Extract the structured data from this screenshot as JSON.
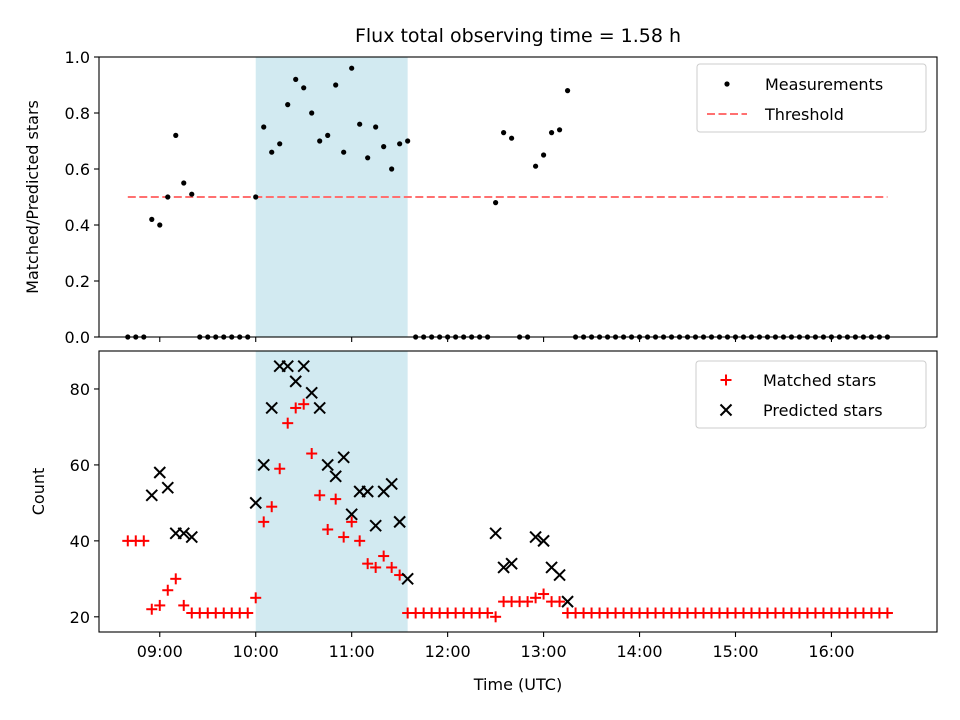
{
  "chart_data": [
    {
      "type": "scatter",
      "title": "Flux total observing time = 1.58 h",
      "xlabel": "",
      "ylabel": "Matched/Predicted stars",
      "ylim": [
        0,
        1.0
      ],
      "yticks": [
        "0.0",
        "0.2",
        "0.4",
        "0.6",
        "0.8",
        "1.0"
      ],
      "xlim": [
        "08:22",
        "17:06"
      ],
      "grid": false,
      "legend_position": "top-right",
      "highlight_span": {
        "start": "10:00",
        "end": "11:35",
        "color": "#add8e6"
      },
      "series": [
        {
          "name": "Measurements",
          "kind": "points",
          "color": "#000000",
          "x": [
            "08:40",
            "08:45",
            "08:50",
            "08:55",
            "09:00",
            "09:05",
            "09:10",
            "09:15",
            "09:20",
            "09:25",
            "09:30",
            "09:35",
            "09:40",
            "09:45",
            "09:50",
            "09:55",
            "10:00",
            "10:05",
            "10:10",
            "10:15",
            "10:20",
            "10:25",
            "10:30",
            "10:35",
            "10:40",
            "10:45",
            "10:50",
            "10:55",
            "11:00",
            "11:05",
            "11:10",
            "11:15",
            "11:20",
            "11:25",
            "11:30",
            "11:35",
            "11:40",
            "11:45",
            "11:50",
            "11:55",
            "12:00",
            "12:05",
            "12:10",
            "12:15",
            "12:20",
            "12:25",
            "12:30",
            "12:35",
            "12:40",
            "12:45",
            "12:50",
            "12:55",
            "13:00",
            "13:05",
            "13:10",
            "13:15",
            "13:20",
            "13:25",
            "13:30",
            "13:35",
            "13:40",
            "13:45",
            "13:50",
            "13:55",
            "14:00",
            "14:05",
            "14:10",
            "14:15",
            "14:20",
            "14:25",
            "14:30",
            "14:35",
            "14:40",
            "14:45",
            "14:50",
            "14:55",
            "15:00",
            "15:05",
            "15:10",
            "15:15",
            "15:20",
            "15:25",
            "15:30",
            "15:35",
            "15:40",
            "15:45",
            "15:50",
            "15:55",
            "16:00",
            "16:05",
            "16:10",
            "16:15",
            "16:20",
            "16:25",
            "16:30",
            "16:35"
          ],
          "y": [
            0,
            0,
            0,
            0.42,
            0.4,
            0.5,
            0.72,
            0.55,
            0.51,
            0,
            0,
            0,
            0,
            0,
            0,
            0,
            0.5,
            0.75,
            0.66,
            0.69,
            0.83,
            0.92,
            0.89,
            0.8,
            0.7,
            0.72,
            0.9,
            0.66,
            0.96,
            0.76,
            0.64,
            0.75,
            0.68,
            0.6,
            0.69,
            0.7,
            0,
            0,
            0,
            0,
            0,
            0,
            0,
            0,
            0,
            0,
            0.48,
            0.73,
            0.71,
            0,
            0,
            0.61,
            0.65,
            0.73,
            0.74,
            0.88,
            0,
            0,
            0,
            0,
            0,
            0,
            0,
            0,
            0,
            0,
            0,
            0,
            0,
            0,
            0,
            0,
            0,
            0,
            0,
            0,
            0,
            0,
            0,
            0,
            0,
            0,
            0,
            0,
            0,
            0,
            0,
            0,
            0,
            0,
            0,
            0,
            0,
            0,
            0,
            0
          ]
        },
        {
          "name": "Threshold",
          "kind": "line",
          "color": "#ff7070",
          "dashed": true,
          "x": [
            "08:40",
            "16:35"
          ],
          "y": [
            0.5,
            0.5
          ]
        }
      ]
    },
    {
      "type": "scatter",
      "title": "",
      "xlabel": "Time (UTC)",
      "ylabel": "Count",
      "ylim": [
        16,
        90
      ],
      "yticks": [
        "20",
        "40",
        "60",
        "80"
      ],
      "xlim": [
        "08:22",
        "17:06"
      ],
      "xticks": [
        "09:00",
        "10:00",
        "11:00",
        "12:00",
        "13:00",
        "14:00",
        "15:00",
        "16:00"
      ],
      "grid": false,
      "legend_position": "top-right",
      "highlight_span": {
        "start": "10:00",
        "end": "11:35",
        "color": "#add8e6"
      },
      "series": [
        {
          "name": "Matched stars",
          "marker": "plus",
          "color": "#ff0000",
          "x": [
            "08:40",
            "08:45",
            "08:50",
            "08:55",
            "09:00",
            "09:05",
            "09:10",
            "09:15",
            "09:20",
            "09:25",
            "09:30",
            "09:35",
            "09:40",
            "09:45",
            "09:50",
            "09:55",
            "10:00",
            "10:05",
            "10:10",
            "10:15",
            "10:20",
            "10:25",
            "10:30",
            "10:35",
            "10:40",
            "10:45",
            "10:50",
            "10:55",
            "11:00",
            "11:05",
            "11:10",
            "11:15",
            "11:20",
            "11:25",
            "11:30",
            "11:35",
            "11:40",
            "11:45",
            "11:50",
            "11:55",
            "12:00",
            "12:05",
            "12:10",
            "12:15",
            "12:20",
            "12:25",
            "12:30",
            "12:35",
            "12:40",
            "12:45",
            "12:50",
            "12:55",
            "13:00",
            "13:05",
            "13:10",
            "13:15",
            "13:20",
            "13:25",
            "13:30",
            "13:35",
            "13:40",
            "13:45",
            "13:50",
            "13:55",
            "14:00",
            "14:05",
            "14:10",
            "14:15",
            "14:20",
            "14:25",
            "14:30",
            "14:35",
            "14:40",
            "14:45",
            "14:50",
            "14:55",
            "15:00",
            "15:05",
            "15:10",
            "15:15",
            "15:20",
            "15:25",
            "15:30",
            "15:35",
            "15:40",
            "15:45",
            "15:50",
            "15:55",
            "16:00",
            "16:05",
            "16:10",
            "16:15",
            "16:20",
            "16:25",
            "16:30",
            "16:35"
          ],
          "y": [
            40,
            40,
            40,
            22,
            23,
            27,
            30,
            23,
            21,
            21,
            21,
            21,
            21,
            21,
            21,
            21,
            25,
            45,
            49,
            59,
            71,
            75,
            76,
            63,
            52,
            43,
            51,
            41,
            45,
            40,
            34,
            33,
            36,
            33,
            31,
            21,
            21,
            21,
            21,
            21,
            21,
            21,
            21,
            21,
            21,
            21,
            20,
            24,
            24,
            24,
            24,
            25,
            26,
            24,
            24,
            21,
            21,
            21,
            21,
            21,
            21,
            21,
            21,
            21,
            21,
            21,
            21,
            21,
            21,
            21,
            21,
            21,
            21,
            21,
            21,
            21,
            21,
            21,
            21,
            21,
            21,
            21,
            21,
            21,
            21,
            21,
            21,
            21,
            21,
            21,
            21,
            21,
            21,
            21,
            21,
            21
          ]
        },
        {
          "name": "Predicted stars",
          "marker": "x",
          "color": "#000000",
          "x": [
            "08:55",
            "09:00",
            "09:05",
            "09:10",
            "09:15",
            "09:20",
            "10:00",
            "10:05",
            "10:10",
            "10:15",
            "10:20",
            "10:25",
            "10:30",
            "10:35",
            "10:40",
            "10:45",
            "10:50",
            "10:55",
            "11:00",
            "11:05",
            "11:10",
            "11:15",
            "11:20",
            "11:25",
            "11:30",
            "11:35",
            "12:30",
            "12:35",
            "12:40",
            "12:55",
            "13:00",
            "13:05",
            "13:10",
            "13:15"
          ],
          "y": [
            52,
            58,
            54,
            42,
            42,
            41,
            50,
            60,
            75,
            86,
            86,
            82,
            86,
            79,
            75,
            60,
            57,
            62,
            47,
            53,
            53,
            44,
            53,
            55,
            45,
            30,
            42,
            33,
            34,
            41,
            40,
            33,
            31,
            24
          ]
        }
      ]
    }
  ]
}
